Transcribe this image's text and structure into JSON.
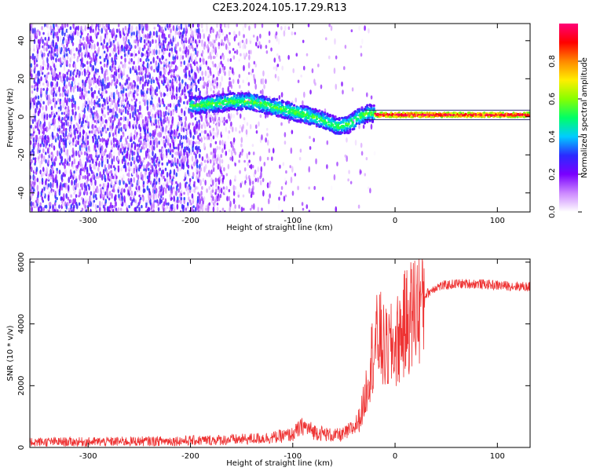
{
  "title": "C2E3.2024.105.17.29.R13",
  "chart_data": [
    {
      "type": "heatmap",
      "xlabel": "Height of straight line (km)",
      "ylabel": "Frequency (Hz)",
      "xlim": [
        -357,
        132
      ],
      "ylim": [
        -50,
        49
      ],
      "xticks": [
        -300,
        -200,
        -100,
        0,
        100
      ],
      "yticks": [
        -40,
        -20,
        0,
        20,
        40
      ],
      "colorbar": {
        "label": "Normalized spectral amplitude",
        "range": [
          0,
          1
        ],
        "ticks": [
          "0.0",
          "0.2",
          "0.4",
          "0.6",
          "0.8"
        ],
        "colors": [
          "#ffffff",
          "#cc88ff",
          "#7a00ff",
          "#2a2aff",
          "#00ccff",
          "#00ff66",
          "#88ff00",
          "#ffee00",
          "#ff8800",
          "#ff0000",
          "#ff0077"
        ]
      },
      "signal_ridge": {
        "x": [
          -195,
          -175,
          -160,
          -140,
          -125,
          -110,
          -95,
          -80,
          -65,
          -55,
          -45,
          -35,
          -25,
          -15,
          0,
          20,
          60,
          100,
          132
        ],
        "y": [
          6,
          7,
          8,
          8,
          6,
          4,
          2,
          0,
          -3,
          -5,
          -4,
          0,
          2,
          1,
          1,
          1,
          1,
          1,
          1
        ]
      },
      "grid": false
    },
    {
      "type": "line",
      "xlabel": "Height of straight line (km)",
      "ylabel": "SNR (10 * v/v)",
      "xlim": [
        -357,
        132
      ],
      "ylim": [
        0,
        6100
      ],
      "xticks": [
        -300,
        -200,
        -100,
        0,
        100
      ],
      "yticks": [
        0,
        2000,
        4000,
        6000
      ],
      "color": "#ee3333",
      "series": [
        {
          "x": [
            -357,
            -300,
            -250,
            -200,
            -150,
            -120,
            -100,
            -90,
            -80,
            -60,
            -50,
            -40,
            -35,
            -30,
            -25,
            -20,
            -15,
            -10,
            -5,
            0,
            10,
            20,
            30,
            40,
            60,
            80,
            100,
            132
          ],
          "y": [
            180,
            180,
            200,
            220,
            260,
            320,
            420,
            700,
            520,
            380,
            420,
            650,
            900,
            1500,
            2600,
            3300,
            3600,
            3100,
            3200,
            3300,
            4000,
            4500,
            4950,
            5200,
            5300,
            5300,
            5250,
            5200
          ]
        }
      ],
      "grid": false
    }
  ]
}
